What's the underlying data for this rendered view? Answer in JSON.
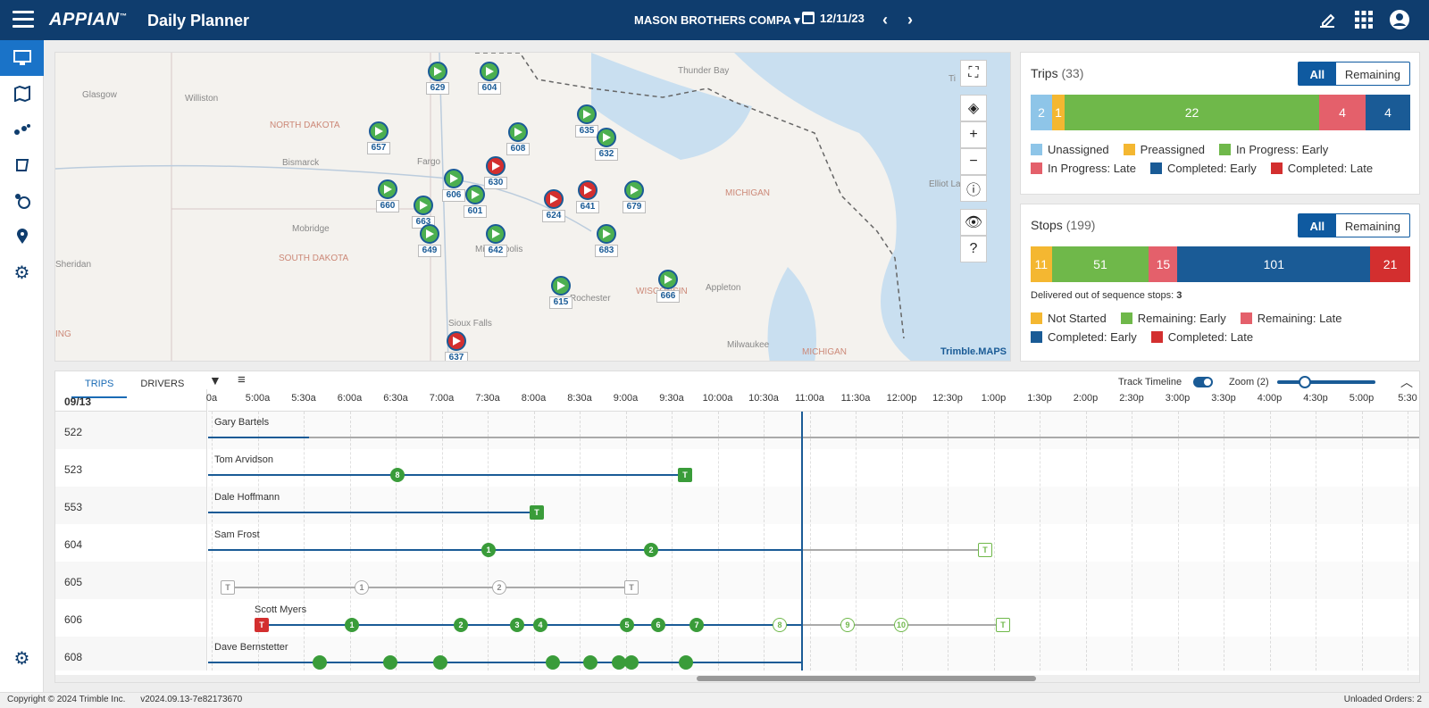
{
  "header": {
    "brand": "APPIAN",
    "app_name": "Daily Planner",
    "company": "MASON BROTHERS COMPA",
    "date": "12/11/23"
  },
  "map": {
    "places": [
      "Glasgow",
      "Williston",
      "NORTH DAKOTA",
      "Bismarck",
      "Fargo",
      "Mobridge",
      "SOUTH DAKOTA",
      "Sheridan",
      "Sioux Falls",
      "Thunder Bay",
      "MICHIGAN",
      "Elliot Lake",
      "MICHIGAN",
      "Appleton",
      "Milwaukee",
      "Minneapolis",
      "Rochester",
      "WISCONSIN",
      "ING",
      "Ti"
    ],
    "markers": [
      {
        "id": "629",
        "red": false
      },
      {
        "id": "604",
        "red": false
      },
      {
        "id": "657",
        "red": false
      },
      {
        "id": "608",
        "red": false
      },
      {
        "id": "635",
        "red": false
      },
      {
        "id": "632",
        "red": false
      },
      {
        "id": "630",
        "red": true
      },
      {
        "id": "660",
        "red": false
      },
      {
        "id": "606",
        "red": false
      },
      {
        "id": "601",
        "red": false
      },
      {
        "id": "663",
        "red": false
      },
      {
        "id": "624",
        "red": true
      },
      {
        "id": "641",
        "red": true
      },
      {
        "id": "679",
        "red": false
      },
      {
        "id": "649",
        "red": false
      },
      {
        "id": "642",
        "red": false
      },
      {
        "id": "683",
        "red": false
      },
      {
        "id": "615",
        "red": false
      },
      {
        "id": "666",
        "red": false
      },
      {
        "id": "637",
        "red": true
      }
    ],
    "logo": "Trimble.MAPS"
  },
  "trips": {
    "title": "Trips",
    "count": "(33)",
    "all_label": "All",
    "remaining_label": "Remaining",
    "bar": [
      {
        "v": "2",
        "color": "#8ec5e8",
        "w": 2
      },
      {
        "v": "1",
        "color": "#f4b731",
        "w": 1
      },
      {
        "v": "22",
        "color": "#6fb84a",
        "w": 22
      },
      {
        "v": "4",
        "color": "#e4606b",
        "w": 4
      },
      {
        "v": "4",
        "color": "#1a5b96",
        "w": 4
      }
    ],
    "legend": [
      {
        "label": "Unassigned",
        "color": "#8ec5e8"
      },
      {
        "label": "Preassigned",
        "color": "#f4b731"
      },
      {
        "label": "In Progress: Early",
        "color": "#6fb84a"
      },
      {
        "label": "In Progress: Late",
        "color": "#e4606b"
      },
      {
        "label": "Completed: Early",
        "color": "#1a5b96"
      },
      {
        "label": "Completed: Late",
        "color": "#d32f2f"
      }
    ]
  },
  "stops": {
    "title": "Stops",
    "count": "(199)",
    "all_label": "All",
    "remaining_label": "Remaining",
    "bar": [
      {
        "v": "11",
        "color": "#f4b731",
        "w": 11
      },
      {
        "v": "51",
        "color": "#6fb84a",
        "w": 51
      },
      {
        "v": "15",
        "color": "#e4606b",
        "w": 15
      },
      {
        "v": "101",
        "color": "#1a5b96",
        "w": 101
      },
      {
        "v": "21",
        "color": "#d32f2f",
        "w": 21
      }
    ],
    "oos_label": "Delivered out of sequence stops:",
    "oos_value": "3",
    "legend": [
      {
        "label": "Not Started",
        "color": "#f4b731"
      },
      {
        "label": "Remaining: Early",
        "color": "#6fb84a"
      },
      {
        "label": "Remaining: Late",
        "color": "#e4606b"
      },
      {
        "label": "Completed: Early",
        "color": "#1a5b96"
      },
      {
        "label": "Completed: Late",
        "color": "#d32f2f"
      }
    ]
  },
  "timeline": {
    "tab_trips": "TRIPS",
    "tab_drivers": "DRIVERS",
    "track_label": "Track Timeline",
    "zoom_label": "Zoom (2)",
    "date": "09/13",
    "ticks": [
      "0a",
      "5:00a",
      "5:30a",
      "6:00a",
      "6:30a",
      "7:00a",
      "7:30a",
      "8:00a",
      "8:30a",
      "9:00a",
      "9:30a",
      "10:00a",
      "10:30a",
      "11:00a",
      "11:30a",
      "12:00p",
      "12:30p",
      "1:00p",
      "1:30p",
      "2:00p",
      "2:30p",
      "3:00p",
      "3:30p",
      "4:00p",
      "4:30p",
      "5:00p",
      "5:30"
    ],
    "rows": [
      {
        "trip": "522",
        "driver": "Gary Bartels"
      },
      {
        "trip": "523",
        "driver": "Tom Arvidson"
      },
      {
        "trip": "553",
        "driver": "Dale Hoffmann"
      },
      {
        "trip": "604",
        "driver": "Sam Frost"
      },
      {
        "trip": "605",
        "driver": ""
      },
      {
        "trip": "606",
        "driver": "Scott Myers"
      },
      {
        "trip": "608",
        "driver": "Dave Bernstetter"
      }
    ]
  },
  "footer": {
    "copyright": "Copyright © 2024 Trimble Inc.",
    "version": "v2024.09.13-7e82173670",
    "unloaded": "Unloaded Orders: 2"
  }
}
